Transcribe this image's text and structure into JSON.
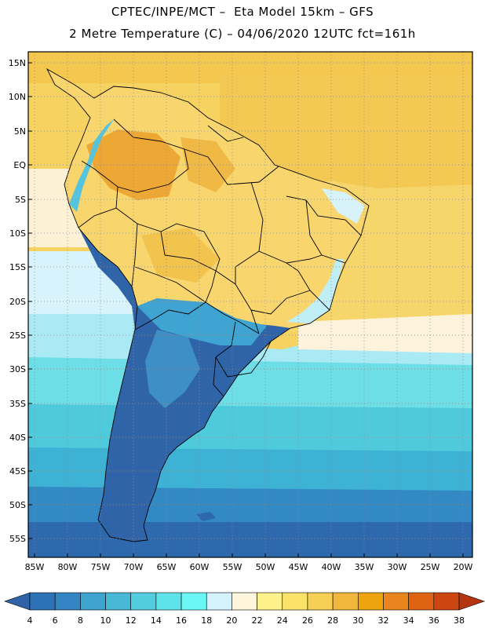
{
  "header": {
    "line1": "CPTEC/INPE/MCT –  Eta Model 15km – GFS",
    "line2": "2 Metre Temperature (C) – 04/06/2020 12UTC fct=161h"
  },
  "axes": {
    "lat_labels": [
      "15N",
      "10N",
      "5N",
      "EQ",
      "5S",
      "10S",
      "15S",
      "20S",
      "25S",
      "30S",
      "35S",
      "40S",
      "45S",
      "50S",
      "55S"
    ],
    "lon_labels": [
      "85W",
      "80W",
      "75W",
      "70W",
      "65W",
      "60W",
      "55W",
      "50W",
      "45W",
      "40W",
      "35W",
      "30W",
      "25W",
      "20W"
    ]
  },
  "colorbar": {
    "labels": [
      "4",
      "6",
      "8",
      "10",
      "12",
      "14",
      "16",
      "18",
      "20",
      "22",
      "24",
      "26",
      "28",
      "30",
      "32",
      "34",
      "36",
      "38"
    ],
    "colors": [
      "#2f62a6",
      "#2e72b6",
      "#3386c3",
      "#3ea3cf",
      "#48b8d7",
      "#52cddf",
      "#5fe3ea",
      "#6bf6f6",
      "#d2f3fb",
      "#fdf5dc",
      "#fdf18c",
      "#fbe36a",
      "#f6cf55",
      "#f0b73c",
      "#eda40f",
      "#e8861d",
      "#de6413",
      "#cc4612",
      "#b53410"
    ]
  }
}
